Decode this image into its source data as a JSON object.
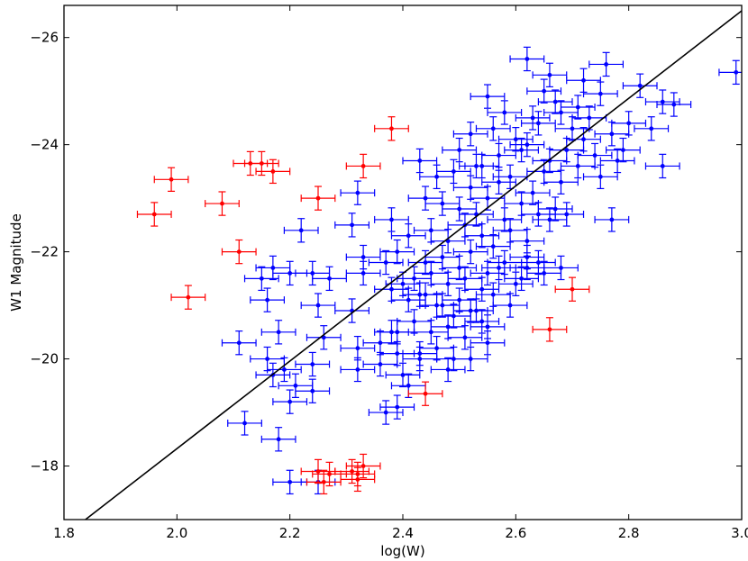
{
  "chart_data": {
    "type": "scatter",
    "xlabel": "log(W)",
    "ylabel": "W1 Magnitude",
    "xlim": [
      1.8,
      3.0
    ],
    "ylim": [
      -17.0,
      -26.6
    ],
    "y_inverted": true,
    "grid": false,
    "x_ticks": [
      "1.8",
      "2.0",
      "2.2",
      "2.4",
      "2.6",
      "2.8",
      "3.0"
    ],
    "y_ticks": [
      "−26",
      "−24",
      "−22",
      "−20",
      "−18"
    ],
    "fit_line": {
      "x": [
        1.838,
        3.0
      ],
      "y": [
        -17.0,
        -26.5
      ]
    },
    "series": [
      {
        "color": "#0000ff",
        "x_error": 0.03,
        "y_error": 0.22,
        "x": [
          2.62,
          2.66,
          2.65,
          2.72,
          2.76,
          2.99,
          2.55,
          2.58,
          2.63,
          2.67,
          2.71,
          2.75,
          2.82,
          2.86,
          2.88,
          2.52,
          2.56,
          2.6,
          2.64,
          2.68,
          2.7,
          2.73,
          2.77,
          2.8,
          2.84,
          2.5,
          2.53,
          2.57,
          2.61,
          2.62,
          2.66,
          2.69,
          2.72,
          2.74,
          2.79,
          2.43,
          2.46,
          2.49,
          2.52,
          2.54,
          2.57,
          2.59,
          2.63,
          2.65,
          2.68,
          2.71,
          2.75,
          2.78,
          2.32,
          2.44,
          2.47,
          2.5,
          2.53,
          2.55,
          2.58,
          2.61,
          2.64,
          2.67,
          2.86,
          2.31,
          2.38,
          2.41,
          2.45,
          2.48,
          2.51,
          2.54,
          2.56,
          2.59,
          2.62,
          2.66,
          2.69,
          2.22,
          2.39,
          2.44,
          2.47,
          2.5,
          2.52,
          2.55,
          2.58,
          2.62,
          2.65,
          2.68,
          2.77,
          2.24,
          2.37,
          2.42,
          2.45,
          2.48,
          2.51,
          2.54,
          2.57,
          2.6,
          2.64,
          2.33,
          2.38,
          2.41,
          2.44,
          2.47,
          2.5,
          2.53,
          2.56,
          2.59,
          2.62,
          2.17,
          2.2,
          2.27,
          2.31,
          2.33,
          2.4,
          2.43,
          2.46,
          2.49,
          2.52,
          2.55,
          2.61,
          2.15,
          2.16,
          2.25,
          2.32,
          2.36,
          2.42,
          2.45,
          2.48,
          2.51,
          2.54,
          2.39,
          2.43,
          2.46,
          2.49,
          2.52,
          2.55,
          2.11,
          2.18,
          2.26,
          2.38,
          2.43,
          2.48,
          2.17,
          2.24,
          2.32,
          2.36,
          2.39,
          2.4,
          2.41,
          2.16,
          2.19,
          2.39,
          2.21,
          2.24,
          2.2,
          2.37,
          2.12,
          2.18,
          2.2,
          2.25
        ],
        "y": [
          -25.6,
          -25.3,
          -25.0,
          -25.2,
          -25.5,
          -25.35,
          -24.9,
          -24.6,
          -24.5,
          -24.8,
          -24.7,
          -24.95,
          -25.1,
          -24.8,
          -24.75,
          -24.2,
          -24.3,
          -24.1,
          -24.4,
          -24.6,
          -24.3,
          -24.5,
          -24.2,
          -24.4,
          -24.3,
          -23.9,
          -23.6,
          -23.8,
          -23.9,
          -24.0,
          -23.7,
          -23.9,
          -24.1,
          -23.8,
          -23.9,
          -23.7,
          -23.4,
          -23.5,
          -23.2,
          -23.6,
          -23.3,
          -23.4,
          -23.1,
          -23.5,
          -23.3,
          -23.6,
          -23.4,
          -23.7,
          -23.1,
          -23.0,
          -22.9,
          -22.8,
          -22.7,
          -23.0,
          -22.6,
          -22.9,
          -22.7,
          -22.8,
          -23.6,
          -22.5,
          -22.6,
          -22.3,
          -22.4,
          -22.2,
          -22.5,
          -22.3,
          -22.1,
          -22.4,
          -22.2,
          -22.6,
          -22.7,
          -22.4,
          -22.0,
          -21.8,
          -21.9,
          -21.7,
          -22.0,
          -21.6,
          -21.8,
          -21.9,
          -21.6,
          -21.7,
          -22.6,
          -21.6,
          -21.8,
          -21.5,
          -21.6,
          -21.4,
          -21.5,
          -21.3,
          -21.7,
          -21.4,
          -21.8,
          -21.9,
          -21.3,
          -21.1,
          -21.2,
          -21.0,
          -21.1,
          -20.9,
          -21.2,
          -21.0,
          -21.7,
          -21.7,
          -21.6,
          -21.5,
          -20.9,
          -21.6,
          -21.4,
          -21.2,
          -21.0,
          -20.8,
          -20.9,
          -20.6,
          -21.5,
          -21.5,
          -21.1,
          -21.0,
          -20.2,
          -20.3,
          -20.7,
          -20.5,
          -20.6,
          -20.4,
          -20.7,
          -20.5,
          -20.1,
          -20.2,
          -20.0,
          -20.0,
          -20.3,
          -20.3,
          -20.5,
          -20.4,
          -20.5,
          -20.0,
          -19.8,
          -19.7,
          -19.9,
          -19.8,
          -19.9,
          -20.1,
          -19.7,
          -19.5,
          -20.0,
          -19.8,
          -19.1,
          -19.5,
          -19.4,
          -19.2,
          -19.0,
          -18.8,
          -18.5,
          -17.7,
          -17.7
        ]
      },
      {
        "color": "#ff0000",
        "x_error": 0.03,
        "y_error": 0.22,
        "x": [
          1.96,
          1.99,
          2.08,
          2.11,
          2.13,
          2.15,
          2.17,
          2.25,
          2.33,
          2.38,
          2.02,
          2.44,
          2.66,
          2.7,
          2.25,
          2.27,
          2.31,
          2.32,
          2.33,
          2.32,
          2.26
        ],
        "y": [
          -22.7,
          -23.35,
          -22.9,
          -22.0,
          -23.65,
          -23.65,
          -23.5,
          -23.0,
          -23.6,
          -24.3,
          -21.15,
          -19.35,
          -20.55,
          -21.3,
          -17.9,
          -17.85,
          -17.9,
          -17.85,
          -18.0,
          -17.75,
          -17.7
        ]
      }
    ]
  }
}
